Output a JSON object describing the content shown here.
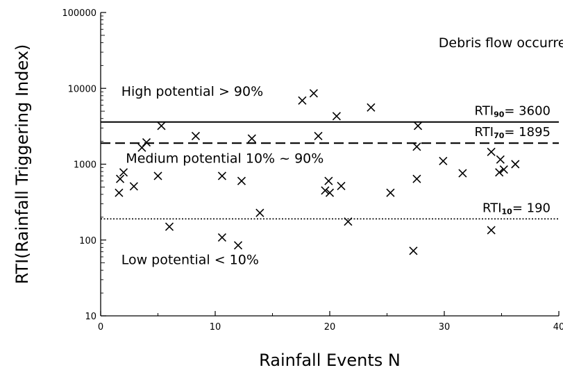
{
  "chart_data": {
    "type": "scatter",
    "xlabel": "Rainfall Events N",
    "ylabel": "RTI(Rainfall Triggering Index)",
    "xlim": [
      0,
      40
    ],
    "ylim": [
      10,
      100000
    ],
    "yscale": "log",
    "grid": false,
    "x_ticks": [
      0,
      10,
      20,
      30,
      40
    ],
    "x_tick_labels": [
      "0",
      "10",
      "20",
      "30",
      "40"
    ],
    "y_ticks": [
      10,
      100,
      1000,
      10000,
      100000
    ],
    "y_tick_labels": [
      "10",
      "100",
      "1000",
      "10000",
      "100000"
    ],
    "annotations": [
      {
        "text": "Debris flow occurred",
        "x": 29.5,
        "y": 35000
      },
      {
        "text": "High potential > 90%",
        "x": 1.8,
        "y": 8000
      },
      {
        "text": "Medium potential 10% ~ 90%",
        "x": 2.2,
        "y": 1040
      },
      {
        "text": "Low potential < 10%",
        "x": 1.8,
        "y": 48
      }
    ],
    "thresholds": [
      {
        "name": "RTI90",
        "value": 3600,
        "style": "solid",
        "label_main": "RTI",
        "label_sub": "90",
        "label_value": "= 3600"
      },
      {
        "name": "RTI70",
        "value": 1895,
        "style": "dashed",
        "label_main": "RTI",
        "label_sub": "70",
        "label_value": "= 1895"
      },
      {
        "name": "RTI10",
        "value": 190,
        "style": "dotted",
        "label_main": "RTI",
        "label_sub": "10",
        "label_value": "= 190"
      }
    ],
    "series": [
      {
        "marker": "x",
        "points": [
          [
            1.6,
            420
          ],
          [
            1.7,
            640
          ],
          [
            2.0,
            780
          ],
          [
            2.9,
            510
          ],
          [
            3.6,
            1650
          ],
          [
            4.0,
            1940
          ],
          [
            5.0,
            700
          ],
          [
            5.3,
            3200
          ],
          [
            6.0,
            150
          ],
          [
            8.3,
            2350
          ],
          [
            10.6,
            700
          ],
          [
            10.6,
            108
          ],
          [
            12.0,
            85
          ],
          [
            12.3,
            600
          ],
          [
            13.2,
            2180
          ],
          [
            13.9,
            228
          ],
          [
            17.6,
            6900
          ],
          [
            18.6,
            8600
          ],
          [
            19.0,
            2350
          ],
          [
            19.6,
            450
          ],
          [
            19.9,
            600
          ],
          [
            20.0,
            420
          ],
          [
            20.6,
            4300
          ],
          [
            21.0,
            515
          ],
          [
            21.6,
            175
          ],
          [
            23.6,
            5600
          ],
          [
            25.3,
            420
          ],
          [
            27.3,
            72
          ],
          [
            27.6,
            640
          ],
          [
            27.6,
            1700
          ],
          [
            27.7,
            3200
          ],
          [
            29.9,
            1100
          ],
          [
            31.6,
            760
          ],
          [
            34.1,
            135
          ],
          [
            34.1,
            1450
          ],
          [
            34.8,
            780
          ],
          [
            34.9,
            1150
          ],
          [
            35.2,
            850
          ],
          [
            36.2,
            1000
          ]
        ]
      }
    ]
  }
}
